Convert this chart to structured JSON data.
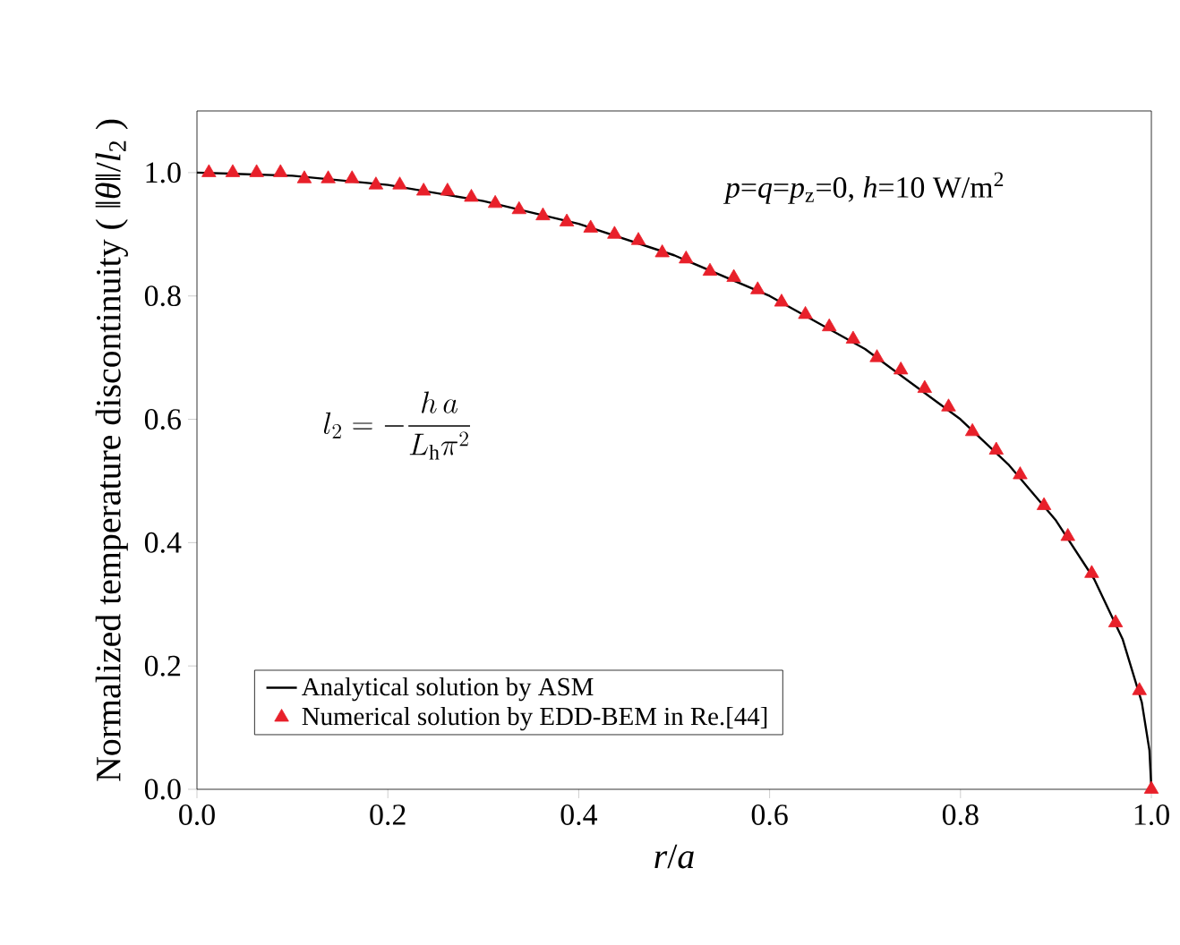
{
  "chart_data": {
    "type": "line",
    "xlabel": "*r*/*a*",
    "ylabel": "Normalized temperature discontinuity ( ‖*θ*‖/*l*$_{2}$ )",
    "xlim": [
      0,
      1
    ],
    "ylim": [
      0,
      1.1
    ],
    "xticks": [
      {
        "value": 0,
        "label": "0.0"
      },
      {
        "value": 0.2,
        "label": "0.2"
      },
      {
        "value": 0.4,
        "label": "0.4"
      },
      {
        "value": 0.6,
        "label": "0.6"
      },
      {
        "value": 0.8,
        "label": "0.8"
      },
      {
        "value": 1,
        "label": "1.0"
      }
    ],
    "yticks": [
      {
        "value": 0,
        "label": "0.0"
      },
      {
        "value": 0.2,
        "label": "0.2"
      },
      {
        "value": 0.4,
        "label": "0.4"
      },
      {
        "value": 0.6,
        "label": "0.6"
      },
      {
        "value": 0.8,
        "label": "0.8"
      },
      {
        "value": 1,
        "label": "1.0"
      }
    ],
    "legend": "bottom left",
    "annotations": [
      "*p*=*q*=*p*$_{z}$=0, *h*=10 W/m$^{2}$",
      "l_{2}=-\\frac{h\\,a}{L_{\\mathrm{h}}\\pi^{2}}"
    ],
    "series": [
      {
        "name": "Analytical solution by ASM",
        "color": "#000000",
        "marker": "none",
        "line_style": "solid",
        "x": [
          0,
          0.1,
          0.2,
          0.3,
          0.4,
          0.5,
          0.6,
          0.7,
          0.8,
          0.85,
          0.9,
          0.94,
          0.97,
          0.99,
          0.998,
          1.0
        ],
        "values": [
          1.0,
          0.995,
          0.98,
          0.954,
          0.917,
          0.866,
          0.8,
          0.714,
          0.6,
          0.527,
          0.436,
          0.341,
          0.243,
          0.141,
          0.063,
          0
        ]
      },
      {
        "name": "Numerical solution by EDD-BEM in Re.[44]",
        "type": "scatter",
        "color": "#e8202a",
        "marker": "triangle",
        "x": [
          0.0125,
          0.0375,
          0.0625,
          0.0875,
          0.1125,
          0.1375,
          0.1625,
          0.1875,
          0.2125,
          0.2375,
          0.2625,
          0.2875,
          0.3125,
          0.3375,
          0.3625,
          0.3875,
          0.4125,
          0.4375,
          0.4625,
          0.4875,
          0.5125,
          0.5375,
          0.5625,
          0.5875,
          0.6125,
          0.6375,
          0.6625,
          0.6875,
          0.7125,
          0.7375,
          0.7625,
          0.7875,
          0.8125,
          0.8375,
          0.8625,
          0.8875,
          0.9125,
          0.9375,
          0.9625,
          0.9875,
          1.0
        ],
        "values": [
          1.0,
          1.0,
          1.0,
          1.0,
          0.99,
          0.99,
          0.99,
          0.98,
          0.98,
          0.97,
          0.97,
          0.96,
          0.95,
          0.94,
          0.93,
          0.92,
          0.91,
          0.9,
          0.89,
          0.87,
          0.86,
          0.84,
          0.83,
          0.81,
          0.79,
          0.77,
          0.75,
          0.73,
          0.7,
          0.68,
          0.65,
          0.62,
          0.58,
          0.55,
          0.51,
          0.46,
          0.41,
          0.35,
          0.27,
          0.16,
          0
        ]
      }
    ]
  }
}
